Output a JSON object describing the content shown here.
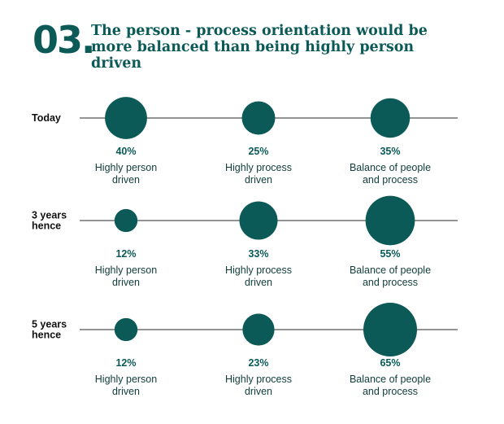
{
  "header": {
    "number": "03.",
    "title": "The person - process orientation would be more balanced than being highly person driven"
  },
  "colors": {
    "accent": "#0b5a57",
    "line": "#555555",
    "label": "#0f3d3a"
  },
  "chart_data": {
    "type": "bubble",
    "categories": [
      "Highly person driven",
      "Highly process driven",
      "Balance of people and process"
    ],
    "category_label_lines": [
      [
        "Highly person",
        "driven"
      ],
      [
        "Highly process",
        "driven"
      ],
      [
        "Balance of people",
        "and process"
      ]
    ],
    "rows": [
      {
        "label_lines": [
          "Today"
        ],
        "values": [
          40,
          25,
          35
        ],
        "value_labels": [
          "40%",
          "25%",
          "35%"
        ]
      },
      {
        "label_lines": [
          "3 years",
          "hence"
        ],
        "values": [
          12,
          33,
          55
        ],
        "value_labels": [
          "12%",
          "33%",
          "55%"
        ]
      },
      {
        "label_lines": [
          "5 years",
          "hence"
        ],
        "values": [
          12,
          23,
          65
        ],
        "value_labels": [
          "12%",
          "23%",
          "65%"
        ]
      }
    ],
    "unit": "%"
  }
}
